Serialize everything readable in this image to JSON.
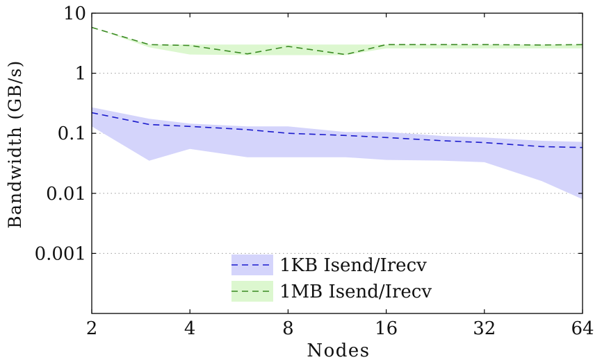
{
  "chart_data": {
    "type": "line",
    "xlabel": "Nodes",
    "ylabel": "Bandwidth (GB/s)",
    "x_scale": "log2",
    "y_scale": "log10",
    "xlim": [
      2,
      64
    ],
    "ylim": [
      0.0001,
      10
    ],
    "x_ticks": [
      2,
      4,
      8,
      16,
      32,
      64
    ],
    "x_tick_labels": [
      "2",
      "4",
      "8",
      "16",
      "32",
      "64"
    ],
    "y_ticks": [
      0.001,
      0.01,
      0.1,
      1,
      10
    ],
    "y_tick_labels": [
      "0.001",
      "0.01",
      "0.1",
      "1",
      "10"
    ],
    "grid": "horizontal dotted",
    "legend_position": "bottom-center",
    "series": [
      {
        "name": "1KB Isend/Irecv",
        "line_color": "#1a1acc",
        "band_color": "#d4d4fb",
        "x": [
          2,
          3,
          4,
          6,
          8,
          12,
          16,
          24,
          32,
          48,
          64
        ],
        "y": [
          0.22,
          0.14,
          0.13,
          0.115,
          0.1,
          0.092,
          0.085,
          0.075,
          0.07,
          0.06,
          0.058
        ],
        "lower": [
          0.13,
          0.035,
          0.055,
          0.04,
          0.04,
          0.04,
          0.036,
          0.035,
          0.033,
          0.016,
          0.008
        ],
        "upper": [
          0.27,
          0.175,
          0.145,
          0.13,
          0.13,
          0.105,
          0.105,
          0.09,
          0.085,
          0.075,
          0.072
        ]
      },
      {
        "name": "1MB Isend/Irecv",
        "line_color": "#3a8a22",
        "band_color": "#dcf7cf",
        "x": [
          2,
          3,
          4,
          6,
          8,
          12,
          16,
          24,
          32,
          48,
          64
        ],
        "y": [
          5.8,
          3.0,
          2.9,
          2.1,
          2.8,
          2.05,
          3.0,
          3.0,
          3.0,
          2.95,
          3.0
        ],
        "lower": [
          5.8,
          2.7,
          2.05,
          2.0,
          2.0,
          2.0,
          2.6,
          2.6,
          2.6,
          2.6,
          2.6
        ],
        "upper": [
          5.8,
          3.0,
          3.0,
          3.0,
          3.0,
          3.0,
          3.0,
          3.0,
          3.0,
          3.0,
          3.0
        ]
      }
    ]
  }
}
